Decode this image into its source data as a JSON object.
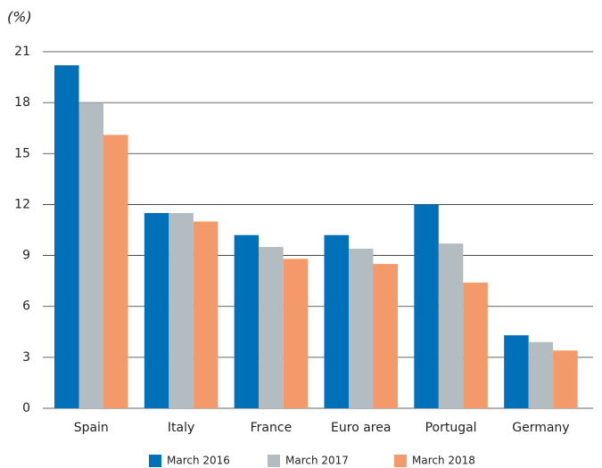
{
  "chart_data": {
    "type": "bar",
    "y_label": "(%)",
    "categories": [
      "Spain",
      "Italy",
      "France",
      "Euro area",
      "Portugal",
      "Germany"
    ],
    "series": [
      {
        "name": "March 2016",
        "color": "#0070b8",
        "values": [
          20.2,
          11.5,
          10.2,
          10.2,
          12.0,
          4.3
        ]
      },
      {
        "name": "March 2017",
        "color": "#b2bcc1",
        "values": [
          18.0,
          11.5,
          9.5,
          9.4,
          9.7,
          3.9
        ]
      },
      {
        "name": "March 2018",
        "color": "#f4996a",
        "values": [
          16.1,
          11.0,
          8.8,
          8.5,
          7.4,
          3.4
        ]
      }
    ],
    "ylim": [
      0,
      21
    ],
    "yticks": [
      0,
      3,
      6,
      9,
      12,
      15,
      18,
      21
    ],
    "grid": true,
    "legend": "bottom"
  }
}
